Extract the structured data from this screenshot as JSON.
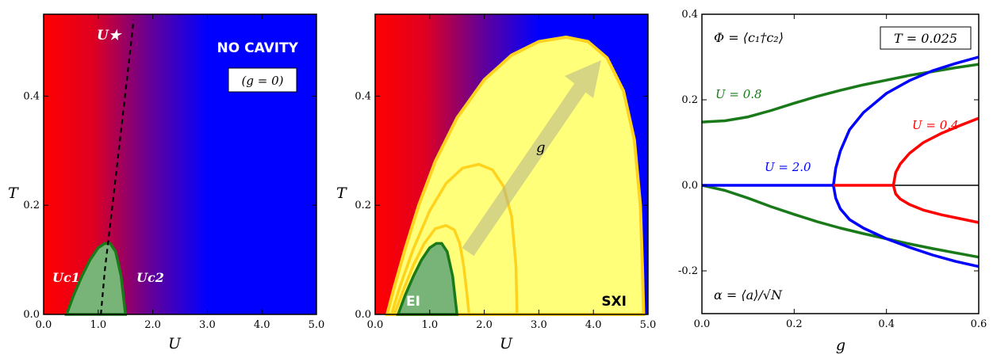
{
  "figure": {
    "panels": [
      "left",
      "middle",
      "right"
    ]
  },
  "chart_data": [
    {
      "type": "heatmap",
      "title": "",
      "xlabel": "U",
      "ylabel": "T",
      "xlim": [
        0,
        5
      ],
      "ylim": [
        0,
        0.55
      ],
      "xticks": [
        "0.0",
        "1.0",
        "2.0",
        "3.0",
        "4.0",
        "5.0"
      ],
      "yticks": [
        "0.0",
        "0.2",
        "0.4"
      ],
      "colors": {
        "low_U": "#ff0000",
        "high_U": "#0000ff",
        "ei_fill": "#78b478",
        "ei_edge": "#1a7a1a"
      },
      "annotations": {
        "no_cavity": "NO CAVITY",
        "g_zero": "(g = 0)",
        "u_star": "U★",
        "uc1": "Uc1",
        "uc2": "Uc2"
      },
      "ei_dome": {
        "U": [
          0.42,
          0.55,
          0.7,
          0.85,
          1.0,
          1.12,
          1.22,
          1.32,
          1.42,
          1.5
        ],
        "T": [
          0,
          0.035,
          0.07,
          0.1,
          0.122,
          0.13,
          0.13,
          0.115,
          0.07,
          0
        ]
      },
      "u_star_line": {
        "U": [
          1.05,
          1.12,
          1.25,
          1.4,
          1.55,
          1.65
        ],
        "T": [
          0,
          0.08,
          0.19,
          0.32,
          0.45,
          0.54
        ]
      }
    },
    {
      "type": "heatmap",
      "title": "",
      "xlabel": "U",
      "ylabel": "T",
      "xlim": [
        0,
        5
      ],
      "ylim": [
        0,
        0.55
      ],
      "xticks": [
        "0.0",
        "1.0",
        "2.0",
        "3.0",
        "4.0",
        "5.0"
      ],
      "yticks": [
        "0.0",
        "0.2",
        "0.4"
      ],
      "colors": {
        "sxi_fill": "#ffff7a",
        "sxi_edge": "#ffd21e",
        "ei_fill": "#78b478",
        "ei_edge": "#1a7a1a",
        "arrow": "#b4b48c"
      },
      "annotations": {
        "ei": "EI",
        "sxi": "SXI",
        "g_arrow": "g"
      },
      "domes": [
        {
          "U": [
            0.42,
            0.55,
            0.7,
            0.85,
            1.0,
            1.12,
            1.22,
            1.32,
            1.42,
            1.5
          ],
          "T": [
            0,
            0.035,
            0.07,
            0.1,
            0.122,
            0.13,
            0.13,
            0.115,
            0.07,
            0
          ]
        },
        {
          "U": [
            0.35,
            0.5,
            0.7,
            0.9,
            1.1,
            1.3,
            1.45,
            1.55,
            1.62,
            1.68,
            1.72
          ],
          "T": [
            0,
            0.04,
            0.09,
            0.13,
            0.157,
            0.163,
            0.155,
            0.13,
            0.09,
            0.04,
            0
          ]
        },
        {
          "U": [
            0.3,
            0.45,
            0.7,
            1.0,
            1.3,
            1.6,
            1.9,
            2.15,
            2.35,
            2.5,
            2.58,
            2.6
          ],
          "T": [
            0,
            0.05,
            0.12,
            0.19,
            0.24,
            0.268,
            0.275,
            0.265,
            0.235,
            0.18,
            0.09,
            0
          ]
        },
        {
          "U": [
            0.22,
            0.35,
            0.55,
            0.8,
            1.1,
            1.5,
            2.0,
            2.5,
            3.0,
            3.5,
            3.9,
            4.25,
            4.55,
            4.75,
            4.86,
            4.9,
            4.92
          ],
          "T": [
            0,
            0.05,
            0.12,
            0.2,
            0.28,
            0.36,
            0.43,
            0.475,
            0.5,
            0.508,
            0.5,
            0.47,
            0.41,
            0.32,
            0.2,
            0.08,
            0
          ]
        }
      ]
    },
    {
      "type": "line",
      "title": "",
      "xlabel": "g",
      "ylabel": "",
      "xlim": [
        0,
        0.6
      ],
      "ylim": [
        -0.3,
        0.4
      ],
      "xticks": [
        "0.0",
        "0.2",
        "0.4",
        "0.6"
      ],
      "yticks": [
        "-0.2",
        "0.0",
        "0.2",
        "0.4"
      ],
      "annotations": {
        "phi": "Φ = ⟨c₁†c₂⟩",
        "temperature": "T = 0.025",
        "alpha": "α = ⟨a⟩/√N",
        "u08": "U = 0.8",
        "u20": "U = 2.0",
        "u04": "U = 0.4"
      },
      "series": [
        {
          "name": "U = 0.8",
          "color": "#1a7a1a",
          "x": [
            0,
            0.05,
            0.1,
            0.15,
            0.2,
            0.25,
            0.3,
            0.35,
            0.4,
            0.45,
            0.5,
            0.55,
            0.6
          ],
          "y": [
            0.148,
            0.151,
            0.16,
            0.175,
            0.192,
            0.208,
            0.222,
            0.235,
            0.246,
            0.257,
            0.266,
            0.275,
            0.283
          ]
        },
        {
          "name": "U = 0.8 (α)",
          "color": "#1a7a1a",
          "x": [
            0,
            0.05,
            0.1,
            0.15,
            0.2,
            0.25,
            0.3,
            0.35,
            0.4,
            0.45,
            0.5,
            0.55,
            0.6
          ],
          "y": [
            0,
            -0.012,
            -0.03,
            -0.05,
            -0.068,
            -0.085,
            -0.1,
            -0.113,
            -0.125,
            -0.137,
            -0.148,
            -0.158,
            -0.168
          ]
        },
        {
          "name": "U = 2.0",
          "color": "#0000ff",
          "x": [
            0,
            0.1,
            0.2,
            0.285,
            0.29,
            0.3,
            0.32,
            0.35,
            0.4,
            0.45,
            0.5,
            0.55,
            0.6
          ],
          "y": [
            0,
            0,
            0,
            0,
            0.04,
            0.08,
            0.13,
            0.17,
            0.215,
            0.245,
            0.268,
            0.285,
            0.3
          ]
        },
        {
          "name": "U = 2.0 (α)",
          "color": "#0000ff",
          "x": [
            0.285,
            0.29,
            0.3,
            0.32,
            0.35,
            0.4,
            0.45,
            0.5,
            0.55,
            0.6
          ],
          "y": [
            0,
            -0.03,
            -0.055,
            -0.08,
            -0.1,
            -0.125,
            -0.145,
            -0.163,
            -0.178,
            -0.19
          ]
        },
        {
          "name": "U = 0.4",
          "color": "#ff0000",
          "x": [
            0.285,
            0.3,
            0.35,
            0.4,
            0.415
          ],
          "y": [
            0,
            0,
            0,
            0,
            0
          ]
        },
        {
          "name": "U = 0.4 (Φ)",
          "color": "#ff0000",
          "x": [
            0.415,
            0.42,
            0.43,
            0.45,
            0.48,
            0.52,
            0.56,
            0.6
          ],
          "y": [
            0,
            0.03,
            0.05,
            0.075,
            0.1,
            0.122,
            0.14,
            0.157
          ]
        },
        {
          "name": "U = 0.4 (α)",
          "color": "#ff0000",
          "x": [
            0.415,
            0.42,
            0.43,
            0.45,
            0.48,
            0.52,
            0.56,
            0.6
          ],
          "y": [
            0,
            -0.02,
            -0.032,
            -0.045,
            -0.058,
            -0.069,
            -0.078,
            -0.087
          ]
        }
      ]
    }
  ]
}
